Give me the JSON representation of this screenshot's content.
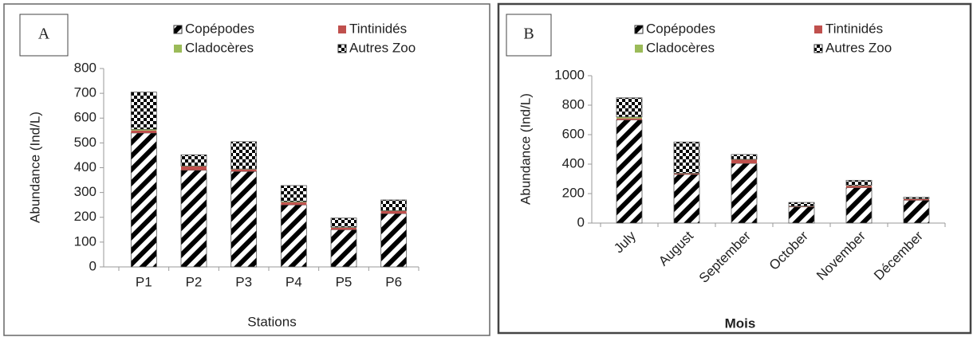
{
  "chart_data": [
    {
      "type": "bar",
      "stacked": true,
      "panel": "A",
      "x_label": "Stations",
      "y_label": "Abundance (Ind/L)",
      "categories": [
        "P1",
        "P2",
        "P3",
        "P4",
        "P5",
        "P6"
      ],
      "series": [
        {
          "name": "Copépodes",
          "color": "#000000",
          "pattern": "diagonal",
          "values": [
            540,
            390,
            385,
            250,
            150,
            215
          ]
        },
        {
          "name": "Tintinidés",
          "color": "#c0504d",
          "pattern": "solid",
          "values": [
            10,
            15,
            8,
            10,
            8,
            10
          ]
        },
        {
          "name": "Cladocères",
          "color": "#9bbb59",
          "pattern": "solid",
          "values": [
            5,
            2,
            2,
            3,
            2,
            2
          ]
        },
        {
          "name": "Autres Zoo",
          "color": "#000000",
          "pattern": "checker",
          "values": [
            150,
            45,
            110,
            65,
            37,
            43
          ]
        }
      ],
      "ylim": [
        0,
        800
      ],
      "yticks": [
        0,
        100,
        200,
        300,
        400,
        500,
        600,
        700,
        800
      ],
      "grid": false
    },
    {
      "type": "bar",
      "stacked": true,
      "panel": "B",
      "x_label": "Mois",
      "y_label": "Abundance (Ind/L)",
      "categories": [
        "July",
        "August",
        "September",
        "October",
        "November",
        "Décember"
      ],
      "series": [
        {
          "name": "Copépodes",
          "color": "#000000",
          "pattern": "diagonal",
          "values": [
            700,
            330,
            405,
            110,
            240,
            155
          ]
        },
        {
          "name": "Tintinidés",
          "color": "#c0504d",
          "pattern": "solid",
          "values": [
            10,
            5,
            25,
            3,
            12,
            8
          ]
        },
        {
          "name": "Cladocères",
          "color": "#9bbb59",
          "pattern": "solid",
          "values": [
            10,
            3,
            3,
            2,
            3,
            2
          ]
        },
        {
          "name": "Autres Zoo",
          "color": "#000000",
          "pattern": "checker",
          "values": [
            130,
            212,
            32,
            25,
            35,
            10
          ]
        }
      ],
      "ylim": [
        0,
        1000
      ],
      "yticks": [
        0,
        200,
        400,
        600,
        800,
        1000
      ],
      "grid": false
    }
  ]
}
